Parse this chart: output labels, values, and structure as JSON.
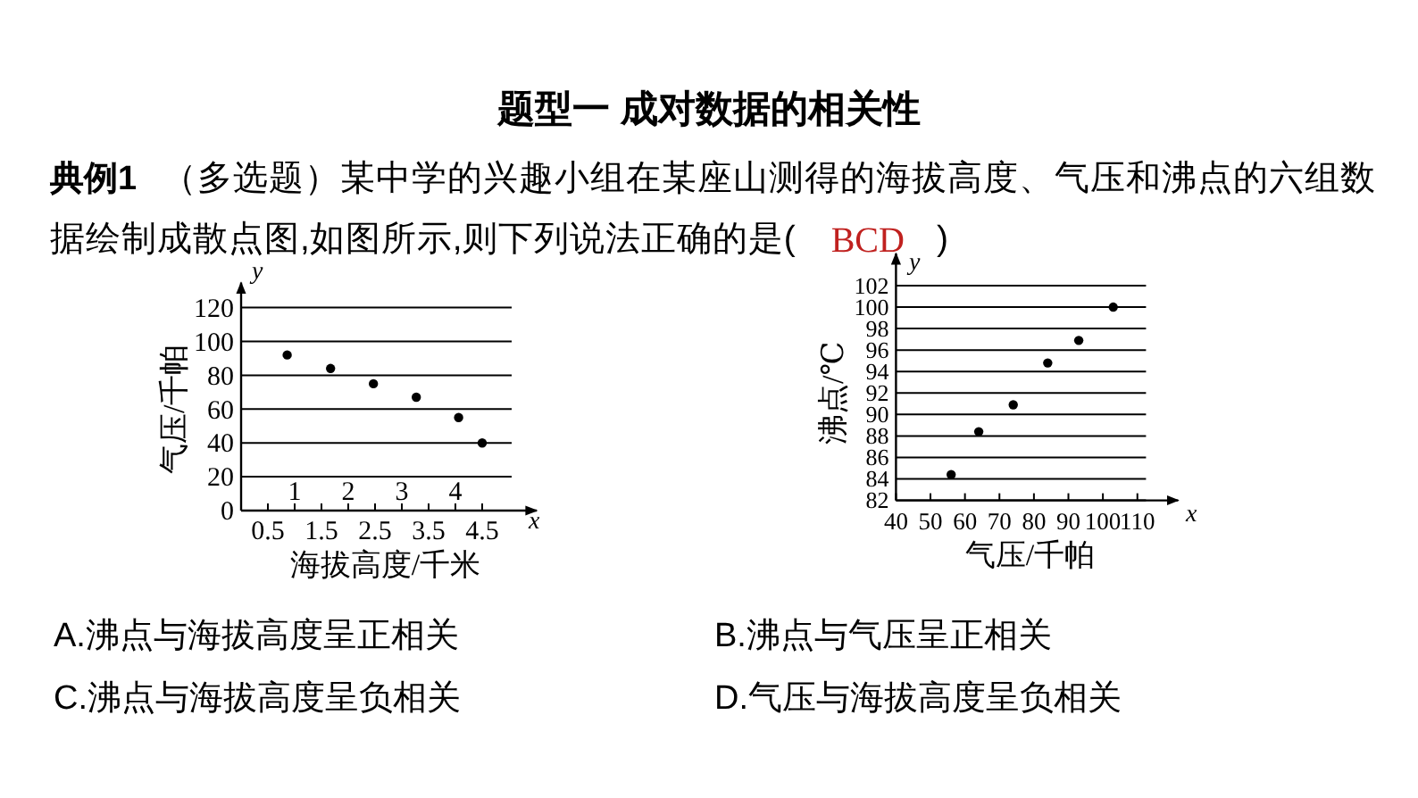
{
  "chart_data": [
    {
      "type": "scatter",
      "title": "题型一  成对数据的相关性",
      "xlabel": "海拔高度/千米",
      "ylabel": "气压/千帕",
      "annotations": [
        "x",
        "y",
        "典例1",
        "（多选题）某中学的兴趣小组在某座山测得的海拔高度、气压和沸点的六组数",
        "据绘制成散点图,如图所示,则下列说法正确的是(",
        "BCD",
        ")",
        "A.沸点与海拔高度呈正相关",
        "B.沸点与气压呈正相关",
        "C.沸点与海拔高度呈负相关",
        "D.气压与海拔高度呈负相关"
      ],
      "x": [
        0.86,
        1.67,
        2.47,
        3.27,
        4.06,
        4.5
      ],
      "values": [
        92,
        84,
        75,
        67,
        55,
        40
      ],
      "color": "#000000",
      "marker": "circle",
      "xlim": [
        0,
        5.05
      ],
      "xticks": [
        0.5,
        1.5,
        2.5,
        3.5,
        4.5
      ],
      "x2lim": [
        0,
        5.05
      ],
      "x2ticks": [
        1,
        2,
        3,
        4
      ],
      "ylim": [
        0,
        120
      ],
      "yticks": [
        0,
        20,
        40,
        60,
        80,
        100,
        120
      ],
      "grid": "y"
    },
    {
      "type": "scatter",
      "xlabel": "气压/千帕",
      "ylabel": "沸点/℃",
      "annotations": [
        "x",
        "y"
      ],
      "x": [
        56,
        64,
        74,
        84,
        93,
        103
      ],
      "values": [
        84.4,
        88.4,
        90.9,
        94.8,
        96.9,
        100
      ],
      "color": "#000000",
      "marker": "circle",
      "xlim": [
        40,
        112.5
      ],
      "xticks": [
        40,
        50,
        60,
        70,
        80,
        90,
        100,
        110
      ],
      "ylim": [
        82,
        102
      ],
      "yticks": [
        82,
        84,
        86,
        88,
        90,
        92,
        94,
        96,
        98,
        100,
        102
      ],
      "grid": "y"
    }
  ]
}
